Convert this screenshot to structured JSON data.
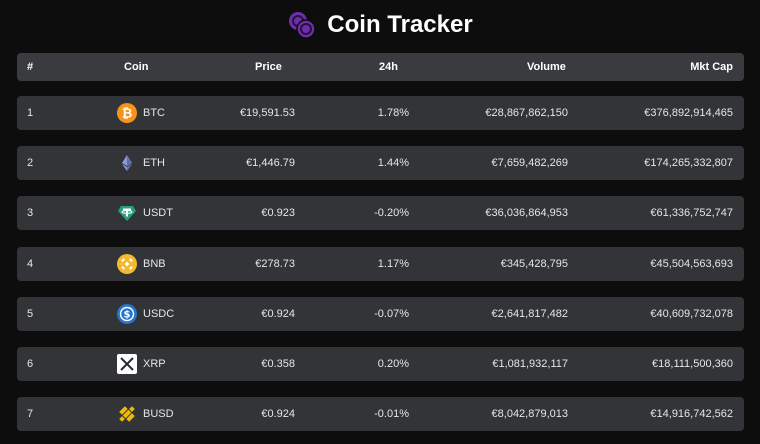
{
  "header": {
    "title": "Coin Tracker"
  },
  "table": {
    "columns": {
      "rank": "#",
      "coin": "Coin",
      "price": "Price",
      "change": "24h",
      "volume": "Volume",
      "mktcap": "Mkt Cap"
    },
    "rows": [
      {
        "rank": "1",
        "symbol": "BTC",
        "icon": "bitcoin-icon",
        "price": "€19,591.53",
        "change": "1.78%",
        "volume": "€28,867,862,150",
        "mktcap": "€376,892,914,465"
      },
      {
        "rank": "2",
        "symbol": "ETH",
        "icon": "ethereum-icon",
        "price": "€1,446.79",
        "change": "1.44%",
        "volume": "€7,659,482,269",
        "mktcap": "€174,265,332,807"
      },
      {
        "rank": "3",
        "symbol": "USDT",
        "icon": "tether-icon",
        "price": "€0.923",
        "change": "-0.20%",
        "volume": "€36,036,864,953",
        "mktcap": "€61,336,752,747"
      },
      {
        "rank": "4",
        "symbol": "BNB",
        "icon": "bnb-icon",
        "price": "€278.73",
        "change": "1.17%",
        "volume": "€345,428,795",
        "mktcap": "€45,504,563,693"
      },
      {
        "rank": "5",
        "symbol": "USDC",
        "icon": "usdc-icon",
        "price": "€0.924",
        "change": "-0.07%",
        "volume": "€2,641,817,482",
        "mktcap": "€40,609,732,078"
      },
      {
        "rank": "6",
        "symbol": "XRP",
        "icon": "xrp-icon",
        "price": "€0.358",
        "change": "0.20%",
        "volume": "€1,081,932,117",
        "mktcap": "€18,111,500,360"
      },
      {
        "rank": "7",
        "symbol": "BUSD",
        "icon": "busd-icon",
        "price": "€0.924",
        "change": "-0.01%",
        "volume": "€8,042,879,013",
        "mktcap": "€14,916,742,562"
      }
    ]
  },
  "colors": {
    "background": "#0d0d0d",
    "row": "#333437",
    "logo": "#6b2fa8",
    "btc": "#f7931a",
    "eth": "#627eea",
    "usdt": "#26a17b",
    "bnb": "#f3ba2f",
    "usdc": "#2775ca",
    "xrp": "#ffffff",
    "busd": "#f0b90b"
  }
}
